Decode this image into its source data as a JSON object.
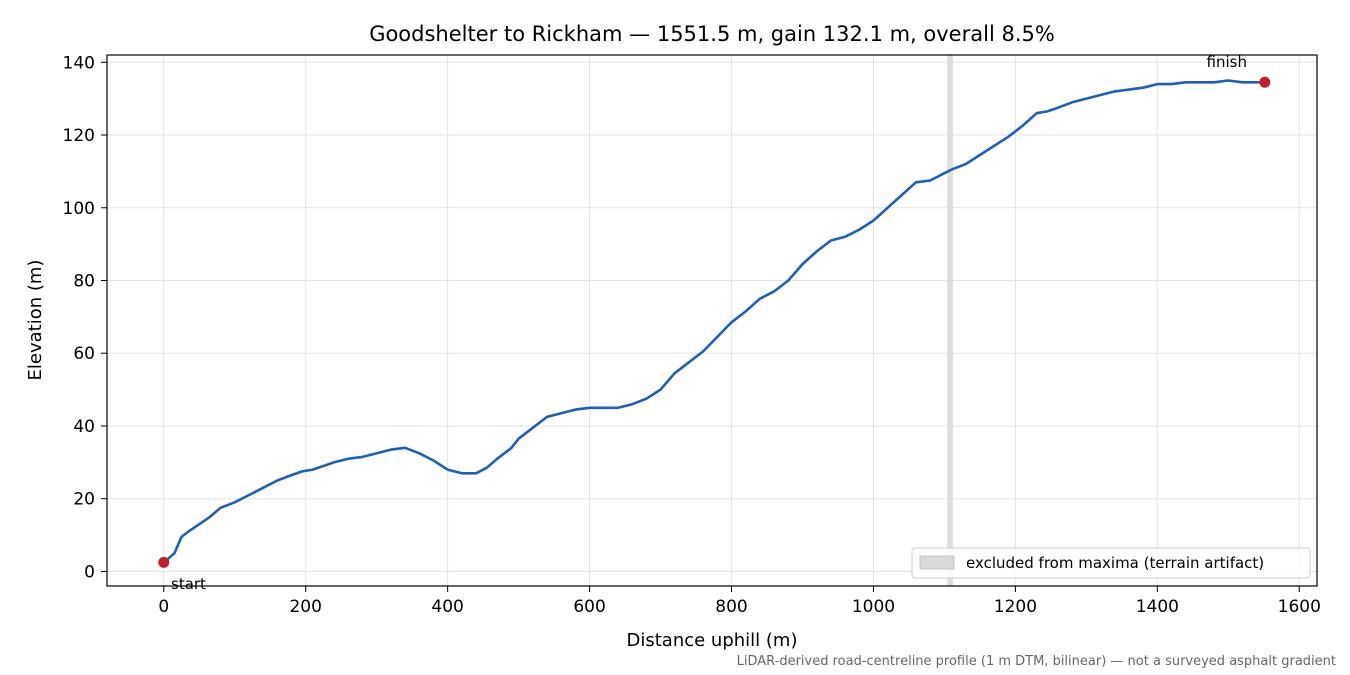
{
  "chart_data": {
    "type": "line",
    "title": "Goodshelter to Rickham — 1551.5 m, gain 132.1 m, overall 8.5%",
    "xlabel": "Distance uphill (m)",
    "ylabel": "Elevation (m)",
    "xlim": [
      -80,
      1625
    ],
    "ylim": [
      -4,
      142
    ],
    "xticks": [
      0,
      200,
      400,
      600,
      800,
      1000,
      1200,
      1400,
      1600
    ],
    "yticks": [
      0,
      20,
      40,
      60,
      80,
      100,
      120,
      140
    ],
    "grid": true,
    "legend_position": "lower-right",
    "footnote": "LiDAR-derived road-centreline profile (1 m DTM, bilinear) — not a surveyed asphalt gradient",
    "colors": {
      "line": "#1f5fb4",
      "marker": "#c0202b",
      "band": "#d9d9d9",
      "grid": "#e3e3e3"
    },
    "series": [
      {
        "x": [
          0,
          15,
          25,
          35,
          50,
          65,
          80,
          100,
          120,
          140,
          160,
          180,
          195,
          210,
          240,
          260,
          280,
          300,
          320,
          340,
          360,
          380,
          400,
          420,
          440,
          455,
          470,
          490,
          500,
          520,
          540,
          560,
          580,
          600,
          640,
          660,
          680,
          700,
          720,
          740,
          760,
          780,
          800,
          820,
          840,
          860,
          880,
          900,
          920,
          940,
          960,
          980,
          1000,
          1020,
          1040,
          1060,
          1080,
          1100,
          1110,
          1130,
          1150,
          1170,
          1190,
          1210,
          1230,
          1245,
          1260,
          1280,
          1300,
          1320,
          1340,
          1360,
          1380,
          1400,
          1420,
          1440,
          1460,
          1480,
          1500,
          1520,
          1540,
          1551.5
        ],
        "y": [
          2.5,
          5,
          9.5,
          11,
          13,
          15,
          17.5,
          19,
          21,
          23,
          25,
          26.5,
          27.5,
          28,
          30,
          31,
          31.5,
          32.5,
          33.5,
          34,
          32.5,
          30.5,
          28,
          27,
          27,
          28.5,
          31,
          34,
          36.5,
          39.5,
          42.5,
          43.5,
          44.5,
          45,
          45,
          46,
          47.5,
          50,
          54.5,
          57.5,
          60.5,
          64.5,
          68.5,
          71.5,
          75,
          77,
          80,
          84.5,
          88,
          91,
          92,
          94,
          96.5,
          100,
          103.5,
          107,
          107.5,
          109.5,
          110.5,
          112,
          114.5,
          117,
          119.5,
          122.5,
          126,
          126.5,
          127.5,
          129,
          130,
          131,
          132,
          132.5,
          133,
          134,
          134,
          134.5,
          134.5,
          134.5,
          135,
          134.5,
          134.5,
          134.5
        ]
      }
    ],
    "excluded_band": {
      "x_start": 1104,
      "x_end": 1112,
      "label": "excluded from maxima (terrain artifact)"
    },
    "annotations": [
      {
        "text": "start",
        "x": 0,
        "y": 2.5
      },
      {
        "text": "finish",
        "x": 1551.5,
        "y": 134.5
      }
    ]
  }
}
